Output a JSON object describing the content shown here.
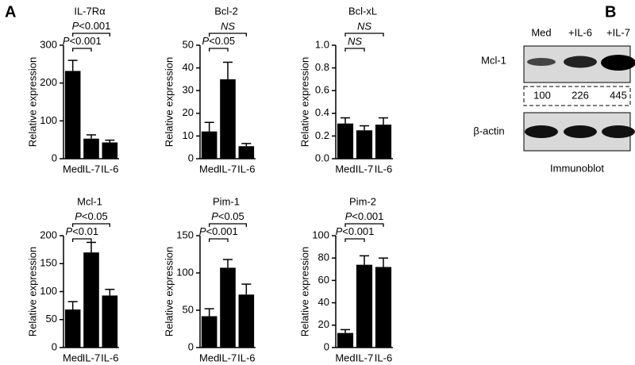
{
  "panels": [
    "A",
    "B"
  ],
  "chart_data": [
    {
      "type": "bar",
      "title": "IL-7Rα",
      "y_label": "Relative expression",
      "color": "#000000",
      "categories": [
        "Med",
        "IL-7",
        "IL-6"
      ],
      "values": [
        232,
        53,
        43
      ],
      "errors": [
        28,
        10,
        6
      ],
      "ylim": [
        0,
        300
      ],
      "yticks": [
        0,
        100,
        200,
        300
      ],
      "annotations": [
        {
          "from": 0,
          "to": 1,
          "text": "P<0.001"
        },
        {
          "from": 0,
          "to": 2,
          "text": "P<0.001"
        }
      ]
    },
    {
      "type": "bar",
      "title": "Bcl-2",
      "y_label": "Relative expression",
      "color": "#000000",
      "categories": [
        "Med",
        "IL-7",
        "IL-6"
      ],
      "values": [
        12,
        35,
        5.5
      ],
      "errors": [
        4,
        7.5,
        1.2
      ],
      "ylim": [
        0,
        50
      ],
      "yticks": [
        0,
        10,
        20,
        30,
        40,
        50
      ],
      "annotations": [
        {
          "from": 0,
          "to": 1,
          "text": "P<0.05"
        },
        {
          "from": 0,
          "to": 2,
          "text": "NS"
        }
      ]
    },
    {
      "type": "bar",
      "title": "Bcl-xL",
      "y_label": "Relative expression",
      "color": "#000000",
      "categories": [
        "Med",
        "IL-7",
        "IL-6"
      ],
      "values": [
        0.31,
        0.25,
        0.3
      ],
      "errors": [
        0.05,
        0.04,
        0.06
      ],
      "ylim": [
        0,
        1
      ],
      "yticks": [
        {
          "value": 0,
          "label": "0.0"
        },
        0.2,
        0.4,
        0.6,
        0.8,
        {
          "value": 1,
          "label": "1.0"
        }
      ],
      "annotations": [
        {
          "from": 0,
          "to": 1,
          "text": "NS"
        },
        {
          "from": 0,
          "to": 2,
          "text": "NS"
        }
      ]
    },
    {
      "type": "bar",
      "title": "Mcl-1",
      "y_label": "Relative expression",
      "color": "#000000",
      "categories": [
        "Med",
        "IL-7",
        "IL-6"
      ],
      "values": [
        68,
        170,
        93
      ],
      "errors": [
        14,
        18,
        11
      ],
      "ylim": [
        0,
        200
      ],
      "yticks": [
        0,
        50,
        100,
        150,
        200
      ],
      "annotations": [
        {
          "from": 0,
          "to": 1,
          "text": "P<0.01"
        },
        {
          "from": 0,
          "to": 2,
          "text": "P<0.05"
        }
      ]
    },
    {
      "type": "bar",
      "title": "Pim-1",
      "y_label": "Relative expression",
      "color": "#000000",
      "categories": [
        "Med",
        "IL-7",
        "IL-6"
      ],
      "values": [
        42,
        107,
        71
      ],
      "errors": [
        10,
        11,
        14
      ],
      "ylim": [
        0,
        150
      ],
      "yticks": [
        0,
        50,
        100,
        150
      ],
      "annotations": [
        {
          "from": 0,
          "to": 1,
          "text": "P<0.001"
        },
        {
          "from": 0,
          "to": 2,
          "text": "P<0.05"
        }
      ]
    },
    {
      "type": "bar",
      "title": "Pim-2",
      "y_label": "Relative expression",
      "color": "#000000",
      "categories": [
        "Med",
        "IL-7",
        "IL-6"
      ],
      "values": [
        13,
        74,
        72
      ],
      "errors": [
        3,
        8,
        8
      ],
      "ylim": [
        0,
        100
      ],
      "yticks": [
        0,
        20,
        40,
        60,
        80,
        100
      ],
      "annotations": [
        {
          "from": 0,
          "to": 1,
          "text": "P<0.001"
        },
        {
          "from": 0,
          "to": 2,
          "text": "P<0.001"
        }
      ]
    }
  ],
  "blot": {
    "lanes": [
      "Med",
      "+IL-6",
      "+IL-7"
    ],
    "rows": [
      "Mcl-1",
      "β-actin"
    ],
    "quantities": [
      100,
      226,
      445
    ],
    "caption": "Immunoblot"
  }
}
